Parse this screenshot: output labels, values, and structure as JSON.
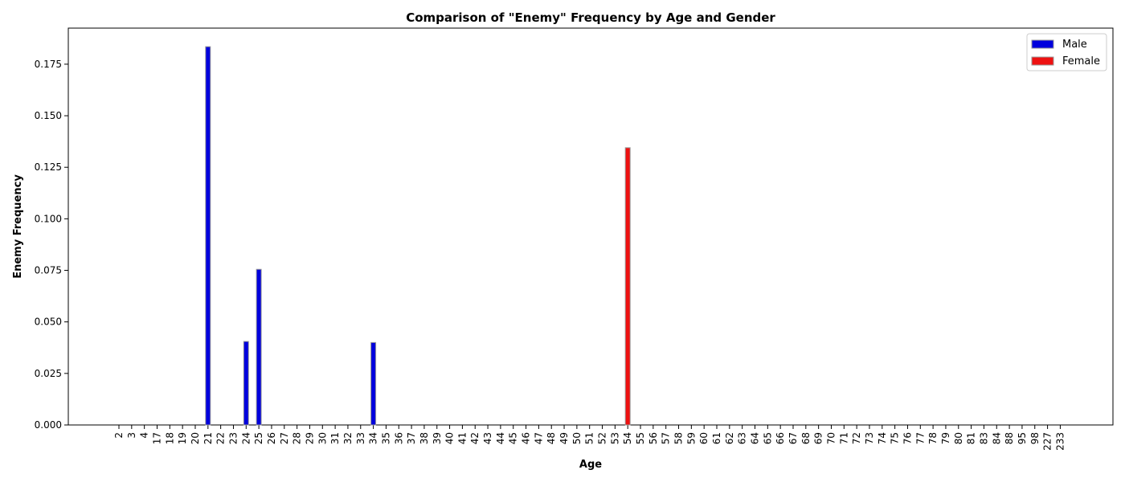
{
  "chart_data": {
    "type": "bar",
    "title": "Comparison of \"Enemy\" Frequency by Age and Gender",
    "xlabel": "Age",
    "ylabel": "Enemy Frequency",
    "ylim": [
      0,
      0.1925
    ],
    "yticks": [
      "0.000",
      "0.025",
      "0.050",
      "0.075",
      "0.100",
      "0.125",
      "0.150",
      "0.175"
    ],
    "ytick_values": [
      0,
      0.025,
      0.05,
      0.075,
      0.1,
      0.125,
      0.15,
      0.175
    ],
    "categories": [
      "2",
      "3",
      "4",
      "17",
      "18",
      "19",
      "20",
      "21",
      "22",
      "23",
      "24",
      "25",
      "26",
      "27",
      "28",
      "29",
      "30",
      "31",
      "32",
      "33",
      "34",
      "35",
      "36",
      "37",
      "38",
      "39",
      "40",
      "41",
      "42",
      "43",
      "44",
      "45",
      "46",
      "47",
      "48",
      "49",
      "50",
      "51",
      "52",
      "53",
      "54",
      "55",
      "56",
      "57",
      "58",
      "59",
      "60",
      "61",
      "62",
      "63",
      "64",
      "65",
      "66",
      "67",
      "68",
      "69",
      "70",
      "71",
      "72",
      "73",
      "74",
      "75",
      "76",
      "77",
      "78",
      "79",
      "80",
      "81",
      "83",
      "84",
      "88",
      "95",
      "98",
      "227",
      "233"
    ],
    "series": [
      {
        "name": "Male",
        "color": "#0000dd",
        "values": {
          "21": 0.1835,
          "24": 0.0405,
          "25": 0.0755,
          "34": 0.04
        }
      },
      {
        "name": "Female",
        "color": "#ee1111",
        "values": {
          "54": 0.1345
        }
      }
    ],
    "legend_position": "top-right",
    "grid": false
  }
}
